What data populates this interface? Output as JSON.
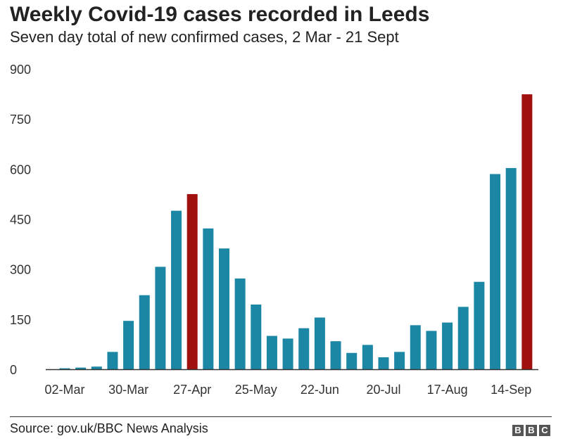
{
  "chart_data": {
    "type": "bar",
    "title": "Weekly Covid-19 cases recorded in Leeds",
    "subtitle": "Seven day total of new confirmed cases, 2 Mar - 21 Sept",
    "categories": [
      "02-Mar",
      "09-Mar",
      "16-Mar",
      "23-Mar",
      "30-Mar",
      "06-Apr",
      "13-Apr",
      "20-Apr",
      "27-Apr",
      "04-May",
      "11-May",
      "18-May",
      "25-May",
      "01-Jun",
      "08-Jun",
      "15-Jun",
      "22-Jun",
      "29-Jun",
      "06-Jul",
      "13-Jul",
      "20-Jul",
      "27-Jul",
      "03-Aug",
      "10-Aug",
      "17-Aug",
      "24-Aug",
      "31-Aug",
      "07-Sep",
      "14-Sep",
      "21-Sep"
    ],
    "values": [
      3,
      5,
      8,
      52,
      145,
      222,
      307,
      475,
      525,
      422,
      362,
      272,
      194,
      100,
      92,
      123,
      155,
      84,
      49,
      73,
      36,
      52,
      132,
      115,
      140,
      187,
      262,
      585,
      603,
      824
    ],
    "highlight_index": [
      8,
      29
    ],
    "tick_labels_x": [
      "02-Mar",
      "30-Mar",
      "27-Apr",
      "25-May",
      "22-Jun",
      "20-Jul",
      "17-Aug",
      "14-Sep"
    ],
    "y_ticks": [
      0,
      150,
      300,
      450,
      600,
      750,
      900
    ],
    "ylim": [
      0,
      900
    ],
    "xlabel": "",
    "ylabel": "",
    "grid": false,
    "colors": {
      "bar": "#1b87a5",
      "highlight": "#a0100f",
      "axis": "#333333"
    }
  },
  "source": "Source: gov.uk/BBC News Analysis",
  "logo": [
    "B",
    "B",
    "C"
  ]
}
